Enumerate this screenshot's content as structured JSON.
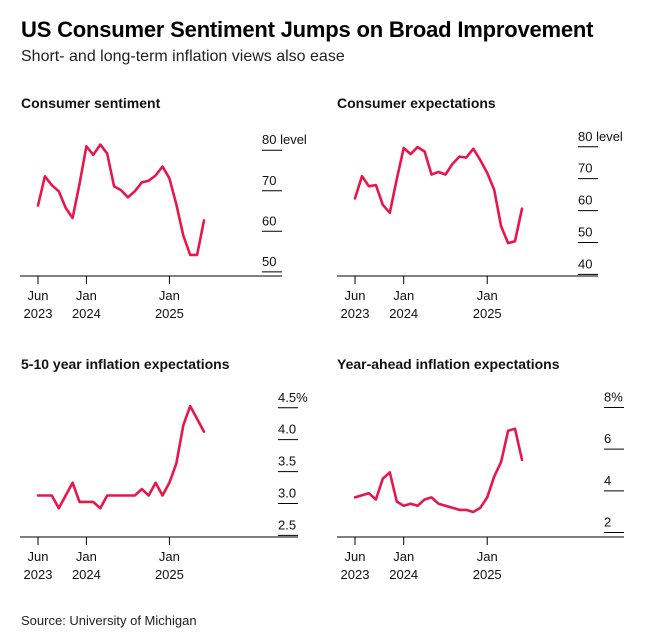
{
  "header": {
    "title": "US Consumer Sentiment Jumps on Broad Improvement",
    "subtitle": "Short- and long-term inflation views also ease"
  },
  "footer": {
    "source": "Source: University of Michigan"
  },
  "colors": {
    "line": "#e8174a",
    "axis": "#000000",
    "text": "#111111"
  },
  "chart_data": [
    {
      "type": "line",
      "title": "Consumer sentiment",
      "y_ticks": [
        "80 level",
        "70",
        "60",
        "50"
      ],
      "y_tick_values": [
        80,
        70,
        60,
        50
      ],
      "ylim": [
        47,
        84
      ],
      "x_ticks": [
        {
          "line1": "Jun",
          "line2": "2023"
        },
        {
          "line1": "Jan",
          "line2": "2024"
        },
        {
          "line1": "Jan",
          "line2": "2025"
        }
      ],
      "x": [
        "2023-06",
        "2023-07",
        "2023-08",
        "2023-09",
        "2023-10",
        "2023-11",
        "2023-12",
        "2024-01",
        "2024-02",
        "2024-03",
        "2024-04",
        "2024-05",
        "2024-06",
        "2024-07",
        "2024-08",
        "2024-09",
        "2024-10",
        "2024-11",
        "2024-12",
        "2025-01",
        "2025-02",
        "2025-03",
        "2025-04",
        "2025-05",
        "2025-06"
      ],
      "series": [
        {
          "name": "Consumer sentiment",
          "values": [
            64.4,
            71.6,
            69.4,
            67.9,
            63.8,
            61.3,
            69.7,
            79.0,
            76.9,
            79.4,
            77.2,
            69.1,
            68.2,
            66.4,
            67.9,
            70.1,
            70.5,
            71.8,
            74.0,
            71.1,
            64.7,
            57.0,
            52.2,
            52.2,
            60.7
          ]
        }
      ]
    },
    {
      "type": "line",
      "title": "Consumer expectations",
      "y_ticks": [
        "80 level",
        "70",
        "60",
        "50",
        "40"
      ],
      "y_tick_values": [
        80,
        70,
        60,
        50,
        40
      ],
      "ylim": [
        37,
        84
      ],
      "x_ticks": [
        {
          "line1": "Jun",
          "line2": "2023"
        },
        {
          "line1": "Jan",
          "line2": "2024"
        },
        {
          "line1": "Jan",
          "line2": "2025"
        }
      ],
      "x": [
        "2023-06",
        "2023-07",
        "2023-08",
        "2023-09",
        "2023-10",
        "2023-11",
        "2023-12",
        "2024-01",
        "2024-02",
        "2024-03",
        "2024-04",
        "2024-05",
        "2024-06",
        "2024-07",
        "2024-08",
        "2024-09",
        "2024-10",
        "2024-11",
        "2024-12",
        "2025-01",
        "2025-02",
        "2025-03",
        "2025-04",
        "2025-05",
        "2025-06"
      ],
      "series": [
        {
          "name": "Consumer expectations",
          "values": [
            61.3,
            68.3,
            65.1,
            65.5,
            59.3,
            56.8,
            67.4,
            77.1,
            75.2,
            77.4,
            76.0,
            68.8,
            69.6,
            68.8,
            72.1,
            74.4,
            74.1,
            76.9,
            73.3,
            69.3,
            64.0,
            52.6,
            47.3,
            47.9,
            58.1
          ]
        }
      ]
    },
    {
      "type": "line",
      "title": "5-10 year inflation expectations",
      "y_ticks": [
        "4.5%",
        "4.0",
        "3.5",
        "3.0",
        "2.5"
      ],
      "y_tick_values": [
        4.5,
        4.0,
        3.5,
        3.0,
        2.5
      ],
      "ylim": [
        2.35,
        4.7
      ],
      "x_ticks": [
        {
          "line1": "Jun",
          "line2": "2023"
        },
        {
          "line1": "Jan",
          "line2": "2024"
        },
        {
          "line1": "Jan",
          "line2": "2025"
        }
      ],
      "x": [
        "2023-06",
        "2023-07",
        "2023-08",
        "2023-09",
        "2023-10",
        "2023-11",
        "2023-12",
        "2024-01",
        "2024-02",
        "2024-03",
        "2024-04",
        "2024-05",
        "2024-06",
        "2024-07",
        "2024-08",
        "2024-09",
        "2024-10",
        "2024-11",
        "2024-12",
        "2025-01",
        "2025-02",
        "2025-03",
        "2025-04",
        "2025-05",
        "2025-06"
      ],
      "series": [
        {
          "name": "5-10 year inflation expectations",
          "values": [
            3.0,
            3.0,
            3.0,
            2.8,
            3.0,
            3.2,
            2.9,
            2.9,
            2.9,
            2.8,
            3.0,
            3.0,
            3.0,
            3.0,
            3.0,
            3.1,
            3.0,
            3.2,
            3.0,
            3.2,
            3.5,
            4.1,
            4.4,
            4.2,
            4.0
          ]
        }
      ]
    },
    {
      "type": "line",
      "title": "Year-ahead inflation expectations",
      "y_ticks": [
        "8%",
        "6",
        "4",
        "2"
      ],
      "y_tick_values": [
        8,
        6,
        4,
        2
      ],
      "ylim": [
        1.4,
        8.6
      ],
      "x_ticks": [
        {
          "line1": "Jun",
          "line2": "2023"
        },
        {
          "line1": "Jan",
          "line2": "2024"
        },
        {
          "line1": "Jan",
          "line2": "2025"
        }
      ],
      "x": [
        "2023-06",
        "2023-07",
        "2023-08",
        "2023-09",
        "2023-10",
        "2023-11",
        "2023-12",
        "2024-01",
        "2024-02",
        "2024-03",
        "2024-04",
        "2024-05",
        "2024-06",
        "2024-07",
        "2024-08",
        "2024-09",
        "2024-10",
        "2024-11",
        "2024-12",
        "2025-01",
        "2025-02",
        "2025-03",
        "2025-04",
        "2025-05",
        "2025-06"
      ],
      "series": [
        {
          "name": "Year-ahead inflation expectations",
          "values": [
            3.3,
            3.4,
            3.5,
            3.2,
            4.2,
            4.5,
            3.1,
            2.9,
            3.0,
            2.9,
            3.2,
            3.3,
            3.0,
            2.9,
            2.8,
            2.7,
            2.7,
            2.6,
            2.8,
            3.3,
            4.3,
            5.0,
            6.5,
            6.6,
            5.1
          ]
        }
      ]
    }
  ]
}
